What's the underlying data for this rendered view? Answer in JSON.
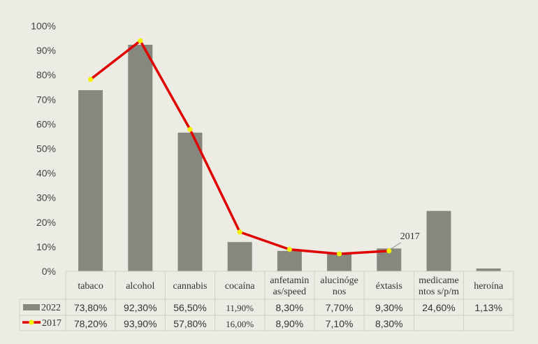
{
  "chart_data": {
    "type": "bar",
    "categories": [
      [
        "tabaco"
      ],
      [
        "alcohol"
      ],
      [
        "cannabis"
      ],
      [
        "cocaína"
      ],
      [
        "anfetamin",
        "as/speed"
      ],
      [
        "alucinóge",
        "nos"
      ],
      [
        "éxtasis"
      ],
      [
        "medicame",
        "ntos s/p/m"
      ],
      [
        "heroína"
      ]
    ],
    "series": [
      {
        "name": "2022",
        "kind": "bar",
        "color": "#86877f",
        "values": [
          73.8,
          92.3,
          56.5,
          11.9,
          8.3,
          7.7,
          9.3,
          24.6,
          1.13
        ],
        "labels": [
          "73,80%",
          "92,30%",
          "56,50%",
          "11,90%",
          "8,30%",
          "7,70%",
          "9,30%",
          "24,60%",
          "1,13%"
        ]
      },
      {
        "name": "2017",
        "kind": "line",
        "color": "#e00000",
        "marker_color": "#f2f200",
        "values": [
          78.2,
          93.9,
          57.8,
          16.0,
          8.9,
          7.1,
          8.3,
          null,
          null
        ],
        "labels": [
          "78,20%",
          "93,90%",
          "57,80%",
          "16,00%",
          "8,90%",
          "7,10%",
          "8,30%",
          "",
          ""
        ]
      }
    ],
    "yticks": [
      "0%",
      "10%",
      "20%",
      "30%",
      "40%",
      "50%",
      "60%",
      "70%",
      "80%",
      "90%",
      "100%"
    ],
    "ylim": [
      0,
      100
    ],
    "annotations": [
      {
        "text": "2017",
        "category_index": 6
      }
    ],
    "legend": "data-table",
    "grid": false
  }
}
